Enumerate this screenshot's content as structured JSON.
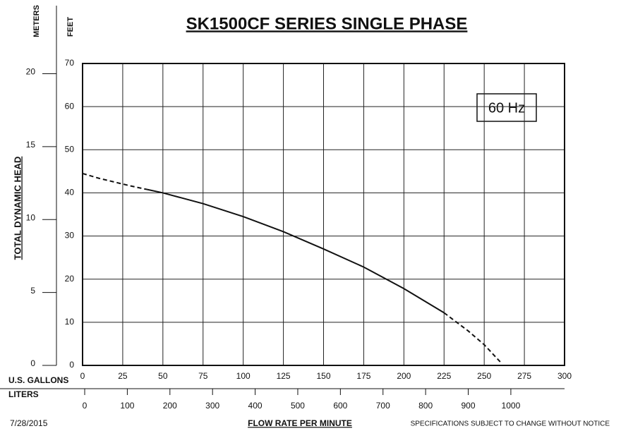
{
  "chart_data": {
    "type": "line",
    "title": "SK1500CF SERIES SINGLE PHASE",
    "ylabel": "TOTAL DYNAMIC HEAD",
    "y_unit": "FEET",
    "y2_unit": "METERS",
    "x_label": "U.S. GALLONS",
    "x2_label": "LITERS",
    "xlabel": "FLOW RATE PER MINUTE",
    "date": "7/28/2015",
    "note": "SPECIFICATIONS SUBJECT TO CHANGE WITHOUT NOTICE",
    "annotation": "60 Hz",
    "xlim": [
      0,
      300
    ],
    "xticks": [
      0,
      25,
      50,
      75,
      100,
      125,
      150,
      175,
      200,
      225,
      250,
      275,
      300
    ],
    "ylim": [
      0,
      70
    ],
    "yticks": [
      0,
      10,
      20,
      30,
      40,
      50,
      60,
      70
    ],
    "y2lim": [
      0,
      20.7
    ],
    "y2ticks": [
      0,
      5,
      10,
      15,
      20
    ],
    "x2lim": [
      -5,
      1126
    ],
    "x2ticks": [
      0,
      100,
      200,
      300,
      400,
      500,
      600,
      700,
      800,
      900,
      1000
    ],
    "grid": true,
    "color": "#111",
    "series": [
      {
        "style": "dashed",
        "x": [
          0,
          10,
          20,
          30,
          40
        ],
        "values": [
          44.5,
          43.4,
          42.5,
          41.6,
          40.8
        ]
      },
      {
        "style": "solid",
        "x": [
          40,
          50,
          75,
          100,
          125,
          150,
          175,
          200,
          225
        ],
        "values": [
          40.8,
          40,
          37.5,
          34.5,
          31,
          27,
          22.8,
          17.8,
          12.2
        ]
      },
      {
        "style": "dashed",
        "x": [
          225,
          240,
          250,
          260
        ],
        "values": [
          12.2,
          8,
          4.8,
          0.8
        ]
      }
    ]
  }
}
